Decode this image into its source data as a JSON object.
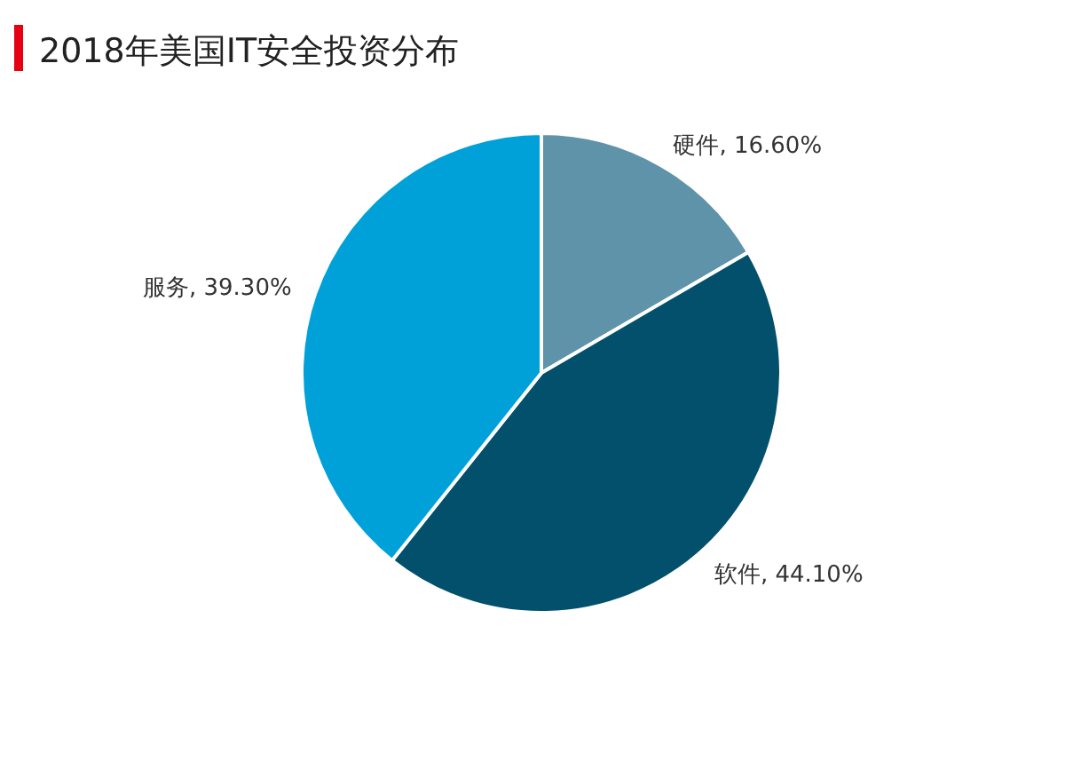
{
  "chart_data": {
    "type": "pie",
    "title": "2018年美国IT安全投资分布",
    "categories": [
      "硬件",
      "软件",
      "服务"
    ],
    "values": [
      16.6,
      44.1,
      39.3
    ],
    "colors": [
      "#5f93a9",
      "#02506b",
      "#00a1d9"
    ],
    "value_labels": [
      "16.60%",
      "44.10%",
      "39.30%"
    ]
  }
}
